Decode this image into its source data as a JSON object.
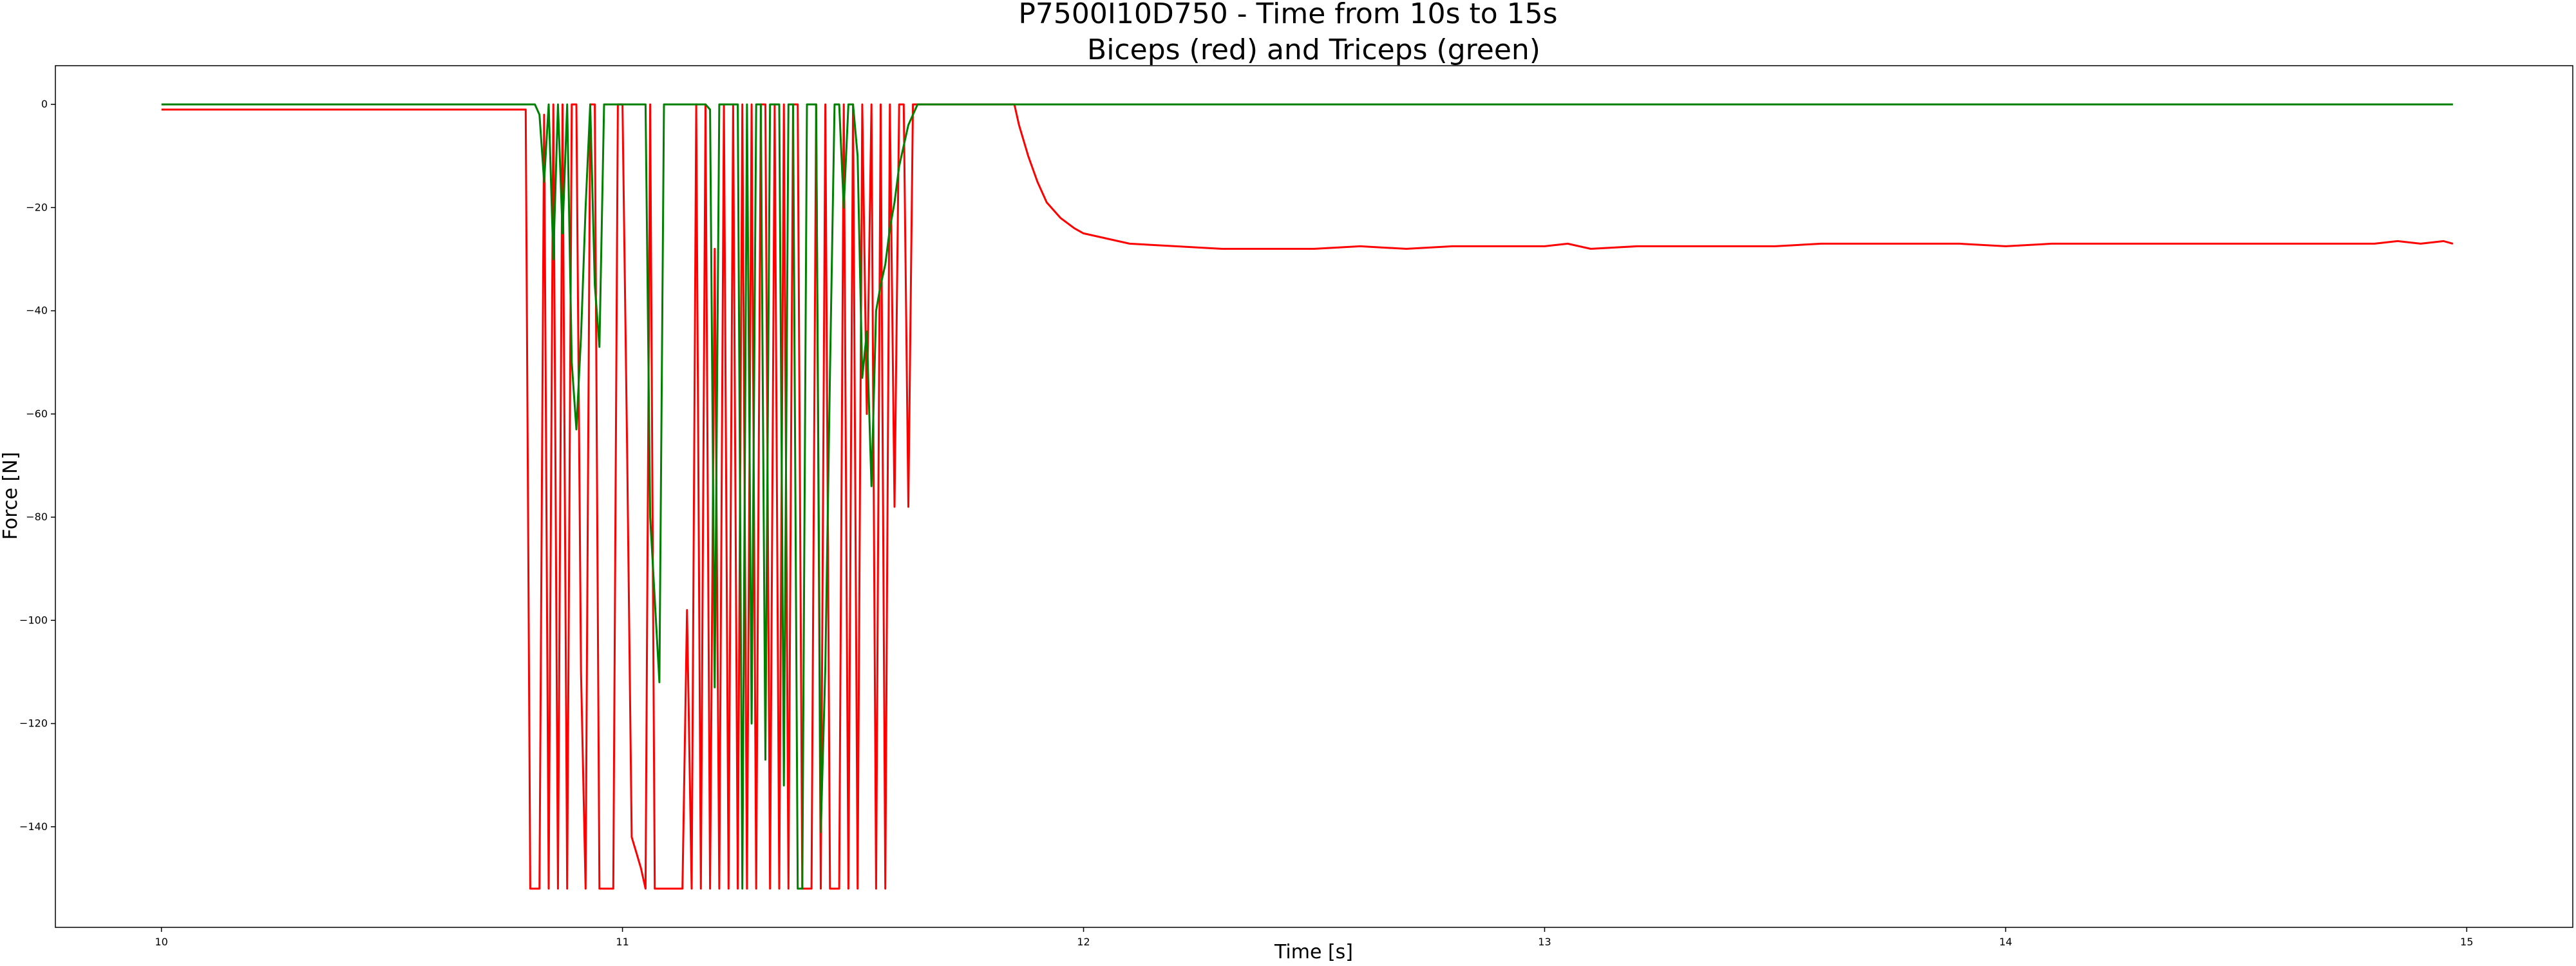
{
  "chart_data": {
    "type": "line",
    "title": "P7500I10D750 - Time from 10s to 15s",
    "subtitle": "Biceps (red) and Triceps (green)",
    "xlabel": "Time [s]",
    "ylabel": "Force [N]",
    "xlim": [
      9.77,
      15.23
    ],
    "ylim": [
      -159.5,
      7.5
    ],
    "xticks": [
      10,
      11,
      12,
      13,
      14,
      15
    ],
    "yticks": [
      0,
      -20,
      -40,
      -60,
      -80,
      -100,
      -120,
      -140
    ],
    "grid": false,
    "legend": "none",
    "series": [
      {
        "color": "#ff0000",
        "x": [
          10.0,
          10.79,
          10.8,
          10.82,
          10.83,
          10.84,
          10.85,
          10.86,
          10.87,
          10.88,
          10.89,
          10.9,
          10.91,
          10.92,
          10.93,
          10.94,
          10.95,
          10.96,
          10.97,
          10.98,
          10.99,
          11.0,
          11.01,
          11.02,
          11.03,
          11.04,
          11.05,
          11.06,
          11.07,
          11.08,
          11.09,
          11.1,
          11.11,
          11.12,
          11.13,
          11.14,
          11.15,
          11.16,
          11.17,
          11.18,
          11.19,
          11.2,
          11.21,
          11.22,
          11.23,
          11.24,
          11.25,
          11.26,
          11.27,
          11.28,
          11.29,
          11.3,
          11.31,
          11.32,
          11.33,
          11.34,
          11.35,
          11.36,
          11.37,
          11.38,
          11.39,
          11.4,
          11.41,
          11.42,
          11.43,
          11.44,
          11.45,
          11.46,
          11.47,
          11.48,
          11.49,
          11.5,
          11.51,
          11.52,
          11.53,
          11.54,
          11.55,
          11.56,
          11.57,
          11.58,
          11.59,
          11.6,
          11.61,
          11.62,
          11.63,
          11.64,
          11.65,
          11.66,
          11.67,
          11.68,
          11.69,
          11.7,
          11.8,
          11.85,
          11.86,
          11.88,
          11.9,
          11.92,
          11.95,
          11.98,
          12.0,
          12.05,
          12.1,
          12.2,
          12.3,
          12.4,
          12.5,
          12.6,
          12.7,
          12.8,
          12.9,
          13.0,
          13.05,
          13.1,
          13.2,
          13.3,
          13.4,
          13.5,
          13.6,
          13.7,
          13.8,
          13.9,
          14.0,
          14.1,
          14.2,
          14.3,
          14.4,
          14.5,
          14.6,
          14.7,
          14.8,
          14.85,
          14.9,
          14.95,
          14.97
        ],
        "y": [
          -1,
          -1,
          -152,
          -152,
          -2,
          -152,
          0,
          -152,
          0,
          -152,
          0,
          0,
          -110,
          -152,
          0,
          0,
          -152,
          -152,
          -152,
          -152,
          0,
          0,
          -67,
          -142,
          -145,
          -148,
          -152,
          0,
          -152,
          -152,
          -152,
          -152,
          -152,
          -152,
          -152,
          -98,
          -152,
          0,
          -152,
          0,
          -152,
          -28,
          -152,
          0,
          -152,
          0,
          -152,
          0,
          -152,
          0,
          -152,
          0,
          0,
          -152,
          0,
          -152,
          0,
          -152,
          0,
          0,
          -152,
          -152,
          -152,
          0,
          -152,
          0,
          -152,
          -152,
          -152,
          0,
          -152,
          0,
          -152,
          0,
          -60,
          0,
          -152,
          0,
          -152,
          0,
          -78,
          0,
          0,
          -78,
          0,
          0,
          0,
          0,
          0,
          0,
          0,
          0,
          0,
          0,
          -4,
          -10,
          -15,
          -19,
          -22,
          -24,
          -25,
          -26,
          -27,
          -27.5,
          -28,
          -28,
          -28,
          -27.5,
          -28,
          -27.5,
          -27.5,
          -27.5,
          -27,
          -28,
          -27.5,
          -27.5,
          -27.5,
          -27.5,
          -27,
          -27,
          -27,
          -27,
          -27.5,
          -27,
          -27,
          -27,
          -27,
          -27,
          -27,
          -27,
          -27,
          -26.5,
          -27,
          -26.5,
          -27
        ]
      },
      {
        "color": "#008000",
        "x": [
          10.0,
          10.81,
          10.82,
          10.83,
          10.84,
          10.85,
          10.86,
          10.87,
          10.88,
          10.89,
          10.9,
          10.91,
          10.92,
          10.93,
          10.94,
          10.95,
          10.96,
          10.97,
          10.98,
          10.99,
          11.0,
          11.05,
          11.06,
          11.08,
          11.09,
          11.1,
          11.11,
          11.12,
          11.13,
          11.18,
          11.19,
          11.2,
          11.21,
          11.22,
          11.23,
          11.24,
          11.25,
          11.26,
          11.27,
          11.28,
          11.29,
          11.3,
          11.31,
          11.32,
          11.33,
          11.34,
          11.35,
          11.36,
          11.37,
          11.38,
          11.39,
          11.4,
          11.41,
          11.42,
          11.43,
          11.44,
          11.45,
          11.46,
          11.47,
          11.48,
          11.49,
          11.5,
          11.51,
          11.52,
          11.53,
          11.54,
          11.55,
          11.56,
          11.57,
          11.58,
          11.59,
          11.6,
          11.61,
          11.62,
          11.63,
          11.64,
          11.65,
          11.66,
          11.67,
          11.68,
          11.69,
          11.7,
          11.71,
          11.72,
          11.73,
          11.74,
          11.75,
          11.76,
          11.77,
          11.78,
          11.79,
          11.8,
          11.82,
          11.84,
          11.86,
          12.0,
          13.0,
          14.0,
          14.97
        ],
        "y": [
          0,
          0,
          -2,
          -15,
          0,
          -30,
          0,
          -25,
          0,
          -50,
          -63,
          -45,
          -20,
          0,
          -35,
          -47,
          0,
          0,
          0,
          0,
          0,
          0,
          -80,
          -112,
          0,
          0,
          0,
          0,
          0,
          0,
          -1,
          -113,
          0,
          0,
          0,
          0,
          0,
          -152,
          0,
          -120,
          0,
          0,
          -127,
          0,
          0,
          0,
          -132,
          0,
          0,
          -152,
          -152,
          0,
          0,
          0,
          -141,
          -109,
          -52,
          0,
          0,
          -20,
          0,
          0,
          -10,
          -53,
          -44,
          -74,
          -40,
          -35,
          -31,
          -24,
          -19,
          -12,
          -8,
          -4,
          -2,
          0,
          0,
          0,
          0,
          0,
          0,
          0,
          0,
          0,
          0,
          0,
          0,
          0,
          0,
          0,
          0,
          0,
          0,
          0,
          0,
          0,
          0,
          0,
          0
        ]
      }
    ]
  }
}
